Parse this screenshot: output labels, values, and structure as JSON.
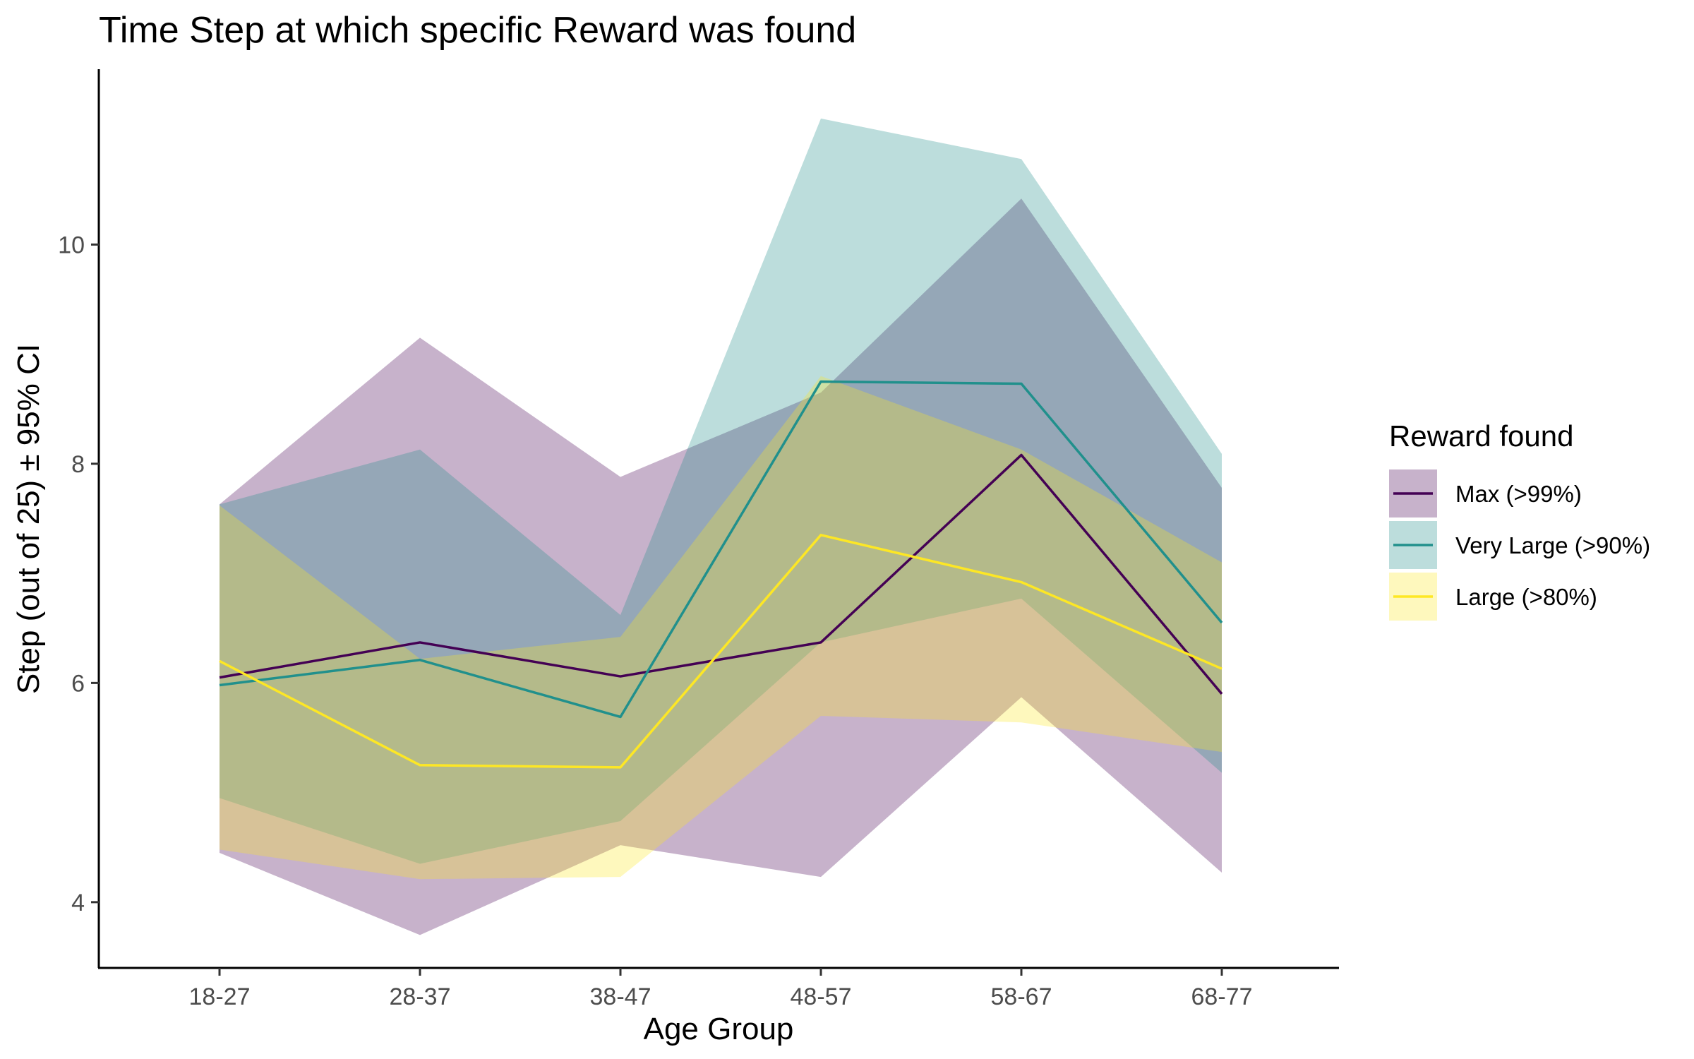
{
  "chart_data": {
    "type": "area",
    "title": "Time Step at which specific Reward was found",
    "xlabel": "Age Group",
    "ylabel": "Step (out of 25) ± 95% CI",
    "categories": [
      "18-27",
      "28-37",
      "38-47",
      "48-57",
      "58-67",
      "68-77"
    ],
    "ylim": [
      3.4,
      11.6
    ],
    "yticks": [
      4,
      6,
      8,
      10
    ],
    "grid": false,
    "legend": {
      "title": "Reward found",
      "position": "right"
    },
    "series": [
      {
        "name": "Max (>99%)",
        "line_color": "#440154",
        "fill_color": "#440154",
        "values": [
          6.05,
          6.37,
          6.06,
          6.37,
          8.08,
          5.9
        ],
        "lower": [
          4.45,
          3.7,
          4.52,
          4.23,
          5.87,
          4.27
        ],
        "upper": [
          7.63,
          9.15,
          7.88,
          8.65,
          10.42,
          7.78
        ]
      },
      {
        "name": "Very Large (>90%)",
        "line_color": "#21908C",
        "fill_color": "#21908C",
        "values": [
          5.98,
          6.21,
          5.69,
          8.75,
          8.73,
          6.55
        ],
        "lower": [
          4.95,
          4.35,
          4.74,
          6.37,
          6.77,
          5.18
        ],
        "upper": [
          7.63,
          8.13,
          6.62,
          11.15,
          10.78,
          8.09
        ]
      },
      {
        "name": "Large (>80%)",
        "line_color": "#FDE725",
        "fill_color": "#FDE725",
        "values": [
          6.2,
          5.25,
          5.23,
          7.35,
          6.92,
          6.13
        ],
        "lower": [
          4.48,
          4.21,
          4.23,
          5.7,
          5.64,
          5.37
        ],
        "upper": [
          7.62,
          6.22,
          6.42,
          8.8,
          8.13,
          7.1
        ]
      }
    ]
  }
}
